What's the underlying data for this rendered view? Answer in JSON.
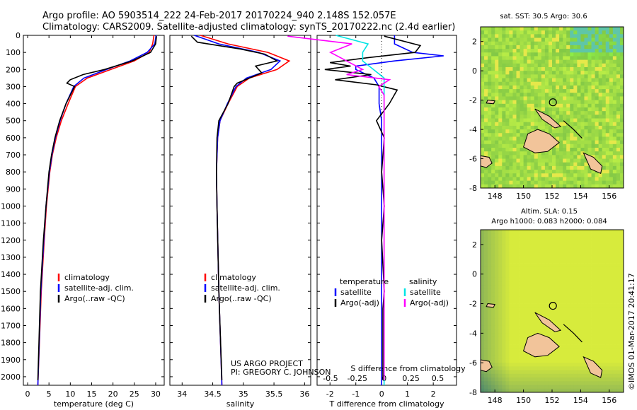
{
  "header": {
    "line1": "Argo profile: AO 5903514_222 24-Feb-2017 20170224_940 2.148S 152.057E",
    "line2": "Climatology: CARS2009. Satellite-adjusted climatology: synTS_20170222.nc (2.4d earlier)"
  },
  "colors": {
    "climatology": "#ff0000",
    "satellite": "#0000ff",
    "argo": "#000000",
    "cyan": "#00e5e5",
    "magenta": "#ff00ff",
    "land": "#f2c49a"
  },
  "chart_data": [
    {
      "type": "line",
      "name": "temperature",
      "xlabel": "temperature (deg C)",
      "ylabel": "",
      "xlim": [
        -1,
        32
      ],
      "ylim": [
        2050,
        0
      ],
      "xticks": [
        0,
        5,
        10,
        15,
        20,
        25,
        30
      ],
      "yticks": [
        0,
        100,
        200,
        300,
        400,
        500,
        600,
        700,
        800,
        900,
        1000,
        1100,
        1200,
        1300,
        1400,
        1500,
        1600,
        1700,
        1800,
        1900,
        2000
      ],
      "legend": [
        "climatology",
        "satellite-adj. clim.",
        "Argo(..raw -QC)"
      ],
      "series": [
        {
          "name": "climatology",
          "depth": [
            0,
            50,
            100,
            150,
            200,
            250,
            300,
            400,
            500,
            600,
            700,
            800,
            1000,
            1200,
            1500,
            2050
          ],
          "values": [
            29.6,
            29.3,
            28.5,
            25.0,
            19.5,
            14.0,
            11.2,
            9.5,
            7.9,
            6.7,
            5.8,
            5.2,
            4.4,
            3.9,
            3.2,
            2.4
          ]
        },
        {
          "name": "satellite-adj. clim.",
          "depth": [
            0,
            50,
            100,
            150,
            200,
            250,
            300,
            400,
            500,
            600,
            700,
            800,
            1000,
            1200,
            1500,
            2050
          ],
          "values": [
            30.1,
            29.8,
            28.0,
            24.0,
            18.5,
            13.2,
            10.8,
            9.0,
            7.6,
            6.5,
            5.7,
            5.1,
            4.3,
            3.8,
            3.1,
            2.4
          ]
        },
        {
          "name": "Argo(..raw -QC)",
          "depth": [
            5,
            50,
            100,
            150,
            200,
            230,
            260,
            280,
            300,
            400,
            500,
            600,
            700,
            800,
            1000,
            1200,
            1500,
            2020
          ],
          "values": [
            30.2,
            30.0,
            28.8,
            24.5,
            18.0,
            13.0,
            10.0,
            9.2,
            11.0,
            9.0,
            7.5,
            6.4,
            5.6,
            5.0,
            4.3,
            3.7,
            3.0,
            2.4
          ]
        }
      ]
    },
    {
      "type": "line",
      "name": "salinity",
      "xlabel": "salinity",
      "ylabel": "",
      "xlim": [
        33.8,
        36.1
      ],
      "ylim": [
        2050,
        0
      ],
      "xticks": [
        34,
        34.5,
        35,
        35.5,
        36
      ],
      "legend": [
        "climatology",
        "satellite-adj. clim.",
        "Argo(..raw -QC)"
      ],
      "series": [
        {
          "name": "climatology",
          "depth": [
            0,
            50,
            100,
            150,
            200,
            250,
            300,
            400,
            500,
            600,
            800,
            1000,
            1500,
            2050
          ],
          "values": [
            34.3,
            34.75,
            35.4,
            35.75,
            35.55,
            35.1,
            34.9,
            34.75,
            34.62,
            34.58,
            34.56,
            34.57,
            34.6,
            34.65
          ]
        },
        {
          "name": "satellite-adj. clim.",
          "depth": [
            0,
            50,
            100,
            150,
            200,
            250,
            300,
            400,
            500,
            600,
            800,
            1000,
            1500,
            2050
          ],
          "values": [
            34.2,
            34.6,
            35.25,
            35.6,
            35.45,
            35.05,
            34.88,
            34.74,
            34.62,
            34.58,
            34.56,
            34.57,
            34.6,
            34.65
          ]
        },
        {
          "name": "Argo(..raw -QC)",
          "depth": [
            5,
            40,
            80,
            110,
            150,
            180,
            220,
            250,
            280,
            300,
            400,
            500,
            600,
            800,
            1000,
            1500,
            2020
          ],
          "values": [
            34.15,
            34.25,
            34.95,
            35.35,
            35.55,
            35.2,
            35.3,
            35.1,
            34.9,
            34.85,
            34.75,
            34.6,
            34.57,
            34.56,
            34.57,
            34.6,
            34.65
          ]
        }
      ]
    },
    {
      "type": "line",
      "name": "difference",
      "xlabel": "T difference from climatology",
      "xlabel_top": "S difference from climatology",
      "xlim": [
        -2.5,
        2.9
      ],
      "ylim": [
        2050,
        0
      ],
      "xticks": [
        -2,
        -1,
        0,
        1,
        2
      ],
      "s_xticks": [
        -0.5,
        -0.25,
        0,
        0.25,
        0.5
      ],
      "legend_title_t": "temperature",
      "legend_title_s": "salinity",
      "legend": [
        "satellite",
        "Argo(-adj)",
        "satellite",
        "Argo(-adj)"
      ],
      "series": [
        {
          "name": "T satellite",
          "depth": [
            0,
            50,
            100,
            120,
            150,
            180,
            200,
            250,
            300,
            400,
            500,
            800,
            1200,
            1600,
            2050
          ],
          "values": [
            0.5,
            0.5,
            1.2,
            2.4,
            0.5,
            -1.0,
            -1.0,
            -0.3,
            -0.1,
            -0.1,
            0,
            0,
            0,
            0,
            0
          ]
        },
        {
          "name": "T Argo(-adj)",
          "depth": [
            5,
            60,
            100,
            130,
            160,
            180,
            200,
            230,
            260,
            290,
            320,
            400,
            500,
            600,
            800,
            1000,
            1200,
            1500,
            1600,
            2020
          ],
          "values": [
            0.1,
            1.5,
            1.3,
            -0.5,
            -2.0,
            -1.2,
            -2.2,
            -0.4,
            -1.8,
            -0.2,
            0.6,
            0.3,
            -0.2,
            0.1,
            0,
            0.1,
            0,
            0.1,
            0.05,
            0.05
          ]
        },
        {
          "name": "S satellite",
          "depth": [
            0,
            50,
            100,
            150,
            200,
            250,
            300,
            400,
            500,
            800,
            1200,
            1600,
            2050
          ],
          "values": [
            -0.45,
            -0.15,
            -0.2,
            -0.2,
            -0.1,
            0,
            0,
            0,
            0,
            0,
            0,
            0,
            0
          ]
        },
        {
          "name": "S Argo(-adj)",
          "depth": [
            5,
            50,
            100,
            150,
            200,
            230,
            260,
            300,
            350,
            400,
            500,
            800,
            1200,
            1600,
            2020
          ],
          "values": [
            -0.9,
            -0.3,
            -0.5,
            -0.35,
            -0.2,
            -0.35,
            0.05,
            -0.05,
            0.0,
            0,
            0,
            0,
            0,
            0,
            0
          ]
        }
      ]
    },
    {
      "type": "heatmap",
      "name": "sst-map",
      "title": "sat. SST: 30.5 Argo: 30.6",
      "xlim": [
        147,
        157
      ],
      "ylim": [
        -8,
        3
      ],
      "xticks": [
        148,
        150,
        152,
        154,
        156
      ],
      "yticks": [
        2,
        0,
        -2,
        -4,
        -6,
        -8
      ],
      "argo_position": {
        "lon": 152.057,
        "lat": -2.148
      }
    },
    {
      "type": "heatmap",
      "name": "sla-map",
      "title1": "Altim. SLA: 0.15",
      "title2": "Argo h1000: 0.083 h2000: 0.084",
      "xlim": [
        147,
        157
      ],
      "ylim": [
        -8,
        3
      ],
      "xticks": [
        148,
        150,
        152,
        154,
        156
      ],
      "yticks": [
        2,
        0,
        -2,
        -4,
        -6,
        -8
      ],
      "argo_position": {
        "lon": 152.057,
        "lat": -2.148
      }
    }
  ],
  "project": {
    "line1": "US ARGO PROJECT",
    "line2": "PI: GREGORY C. JOHNSON"
  },
  "credit": "©IMOS 01-Mar-2017 20:41:17"
}
